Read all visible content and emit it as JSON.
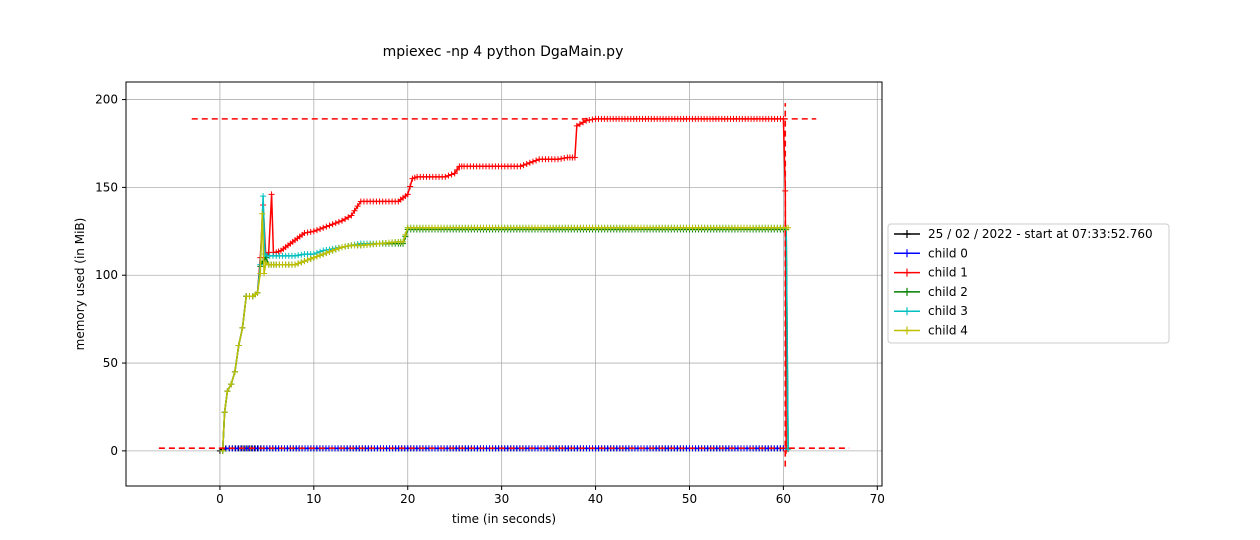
{
  "chart_data": {
    "type": "line",
    "title": "mpiexec -np 4 python DgaMain.py",
    "xlabel": "time (in seconds)",
    "ylabel": "memory used (in MiB)",
    "xlim": [
      -10,
      70.5
    ],
    "ylim": [
      -20,
      210
    ],
    "xticks": [
      0,
      10,
      20,
      30,
      40,
      50,
      60,
      70
    ],
    "yticks": [
      0,
      50,
      100,
      150,
      200
    ],
    "grid": true,
    "legend_position": "center-right-outside",
    "series": [
      {
        "name": "25 / 02 / 2022 - start at 07:33:52.760",
        "color": "#000000",
        "x": [
          0,
          0.3,
          0.6,
          1,
          2,
          5,
          10,
          20,
          30,
          40,
          50,
          60,
          60.3
        ],
        "y": [
          0,
          1,
          1.3,
          1.4,
          1.4,
          1.4,
          1.4,
          1.4,
          1.4,
          1.4,
          1.4,
          1.4,
          1.4
        ]
      },
      {
        "name": "child 0",
        "color": "#0000ff",
        "x": [
          0.3,
          1,
          5,
          10,
          20,
          30,
          40,
          50,
          60,
          60.3
        ],
        "y": [
          1.4,
          1.4,
          1.4,
          1.4,
          1.4,
          1.4,
          1.4,
          1.4,
          1.4,
          1.4
        ]
      },
      {
        "name": "child 1",
        "color": "#ff0000",
        "x": [
          0.3,
          0.5,
          0.8,
          1.2,
          1.6,
          2.0,
          2.4,
          2.8,
          3.5,
          4.0,
          4.3,
          4.6,
          4.9,
          5.2,
          5.5,
          5.7,
          6.0,
          6.5,
          7.0,
          7.5,
          8.0,
          8.5,
          9.0,
          10,
          11,
          12,
          13,
          14,
          15,
          16,
          17,
          18,
          19,
          19.5,
          20,
          20.5,
          21,
          22,
          23,
          24,
          25,
          25.5,
          26,
          28,
          30,
          32,
          33,
          34,
          35,
          36,
          37,
          37.8,
          38,
          39,
          40,
          45,
          50,
          55,
          60,
          60.2,
          60.3
        ],
        "y": [
          0,
          22,
          34,
          38,
          45,
          60,
          70,
          88,
          88,
          90,
          110,
          140,
          110,
          113,
          146,
          113,
          113,
          114,
          116,
          118,
          120,
          122,
          124,
          125,
          127,
          129,
          131,
          134,
          142,
          142,
          142,
          142,
          142,
          144,
          146,
          155,
          156,
          156,
          156,
          156,
          158,
          162,
          162,
          162,
          162,
          162,
          164,
          166,
          166,
          166,
          167,
          167,
          185,
          188,
          189,
          189,
          189,
          189,
          189,
          148,
          0
        ]
      },
      {
        "name": "child 2",
        "color": "#008000",
        "x": [
          0.3,
          0.5,
          0.8,
          1.2,
          1.6,
          2.0,
          2.4,
          2.8,
          3.5,
          4.0,
          4.3,
          4.6,
          4.9,
          5.2,
          6,
          7,
          8,
          9,
          10,
          11,
          12,
          13,
          14,
          15,
          17,
          19,
          19.5,
          20,
          30,
          40,
          50,
          60,
          60.3,
          60.5
        ],
        "y": [
          0,
          22,
          34,
          38,
          45,
          60,
          70,
          88,
          88,
          90,
          105,
          108,
          110,
          106,
          106,
          106,
          106,
          108,
          110,
          112,
          114,
          116,
          117,
          117,
          118,
          118,
          118,
          126,
          126,
          126,
          126,
          126,
          126,
          1
        ]
      },
      {
        "name": "child 3",
        "color": "#00bfbf",
        "x": [
          0.3,
          0.5,
          0.8,
          1.2,
          1.6,
          2.0,
          2.4,
          2.8,
          3.5,
          4.0,
          4.3,
          4.6,
          4.8,
          5.0,
          5.3,
          6,
          7,
          8,
          9,
          10,
          11,
          12,
          13,
          14,
          15,
          17,
          19,
          19.5,
          20,
          30,
          40,
          50,
          60,
          60.3,
          60.5
        ],
        "y": [
          0,
          22,
          34,
          38,
          45,
          60,
          70,
          88,
          88,
          90,
          106,
          145,
          112,
          111,
          111,
          111,
          111,
          111,
          112,
          112,
          114,
          115,
          116,
          117,
          118,
          118,
          119,
          119,
          127,
          127,
          127,
          127,
          127,
          127,
          1
        ]
      },
      {
        "name": "child 4",
        "color": "#bfbf00",
        "x": [
          0.3,
          0.5,
          0.8,
          1.2,
          1.6,
          2.0,
          2.4,
          2.8,
          3.5,
          4.0,
          4.3,
          4.5,
          4.7,
          4.9,
          5.2,
          6,
          7,
          8,
          9,
          10,
          11,
          12,
          13,
          14,
          15,
          17,
          19,
          19.5,
          20,
          30,
          40,
          50,
          60,
          60.3,
          60.5
        ],
        "y": [
          0,
          22,
          34,
          38,
          45,
          60,
          70,
          88,
          88,
          90,
          101,
          135,
          101,
          107,
          106,
          106,
          106,
          106,
          108,
          110,
          112,
          114,
          116,
          117,
          117,
          118,
          119,
          119,
          127,
          127,
          127,
          127,
          127,
          127,
          127
        ]
      }
    ],
    "reference_lines": [
      {
        "orientation": "horizontal",
        "y": 189,
        "x_from": -3,
        "x_to": 63.5,
        "color": "#ff0000",
        "style": "dashed"
      },
      {
        "orientation": "horizontal",
        "y": 1.5,
        "x_from": -6.5,
        "x_to": 67,
        "color": "#ff0000",
        "style": "dashed"
      },
      {
        "orientation": "vertical",
        "x": 60.2,
        "y_from": -9,
        "y_to": 198,
        "color": "#ff0000",
        "style": "dashed"
      }
    ]
  }
}
